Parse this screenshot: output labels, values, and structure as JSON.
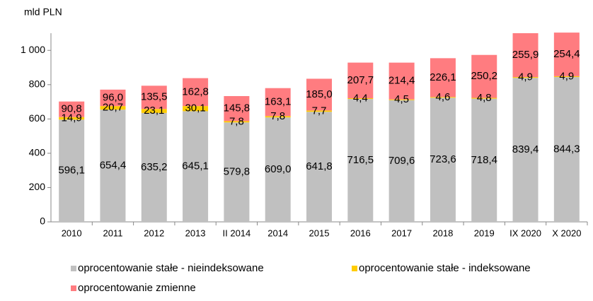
{
  "chart_data": {
    "type": "stacked_bar",
    "y_label": "mld PLN",
    "categories": [
      "2010",
      "2011",
      "2012",
      "2013",
      "II 2014",
      "2014",
      "2015",
      "2016",
      "2017",
      "2018",
      "2019",
      "IX 2020",
      "X 2020"
    ],
    "series": [
      {
        "name": "oprocentowanie stałe - nieindeksowane",
        "color": "#c0c0c0",
        "values": [
          596.1,
          654.4,
          635.2,
          645.1,
          579.8,
          609.0,
          641.8,
          716.5,
          709.6,
          723.6,
          718.4,
          839.4,
          844.3
        ],
        "value_labels": [
          "596,1",
          "654,4",
          "635,2",
          "645,1",
          "579,8",
          "609,0",
          "641,8",
          "716,5",
          "709,6",
          "723,6",
          "718,4",
          "839,4",
          "844,3"
        ]
      },
      {
        "name": "oprocentowanie stałe - indeksowane",
        "color": "#ffcc00",
        "values": [
          14.9,
          20.7,
          23.1,
          30.1,
          7.8,
          7.8,
          7.7,
          4.4,
          4.5,
          4.6,
          4.8,
          4.9,
          4.9
        ],
        "value_labels": [
          "14,9",
          "20,7",
          "23,1",
          "30,1",
          "7,8",
          "7,8",
          "7,7",
          "4,4",
          "4,5",
          "4,6",
          "4,8",
          "4,9",
          "4,9"
        ]
      },
      {
        "name": "oprocentowanie zmienne",
        "color": "#ff7c80",
        "values": [
          90.8,
          96.0,
          135.5,
          162.8,
          145.8,
          163.1,
          185.0,
          207.7,
          214.4,
          226.1,
          250.2,
          255.9,
          254.4
        ],
        "value_labels": [
          "90,8",
          "96,0",
          "135,5",
          "162,8",
          "145,8",
          "163,1",
          "185,0",
          "207,7",
          "214,4",
          "226,1",
          "250,2",
          "255,9",
          "254,4"
        ]
      }
    ],
    "ylim": [
      0,
      1100
    ],
    "yticks": [
      0,
      200,
      400,
      600,
      800,
      {
        "value": 1000,
        "label": "1 000"
      }
    ],
    "legend": "bottom"
  }
}
